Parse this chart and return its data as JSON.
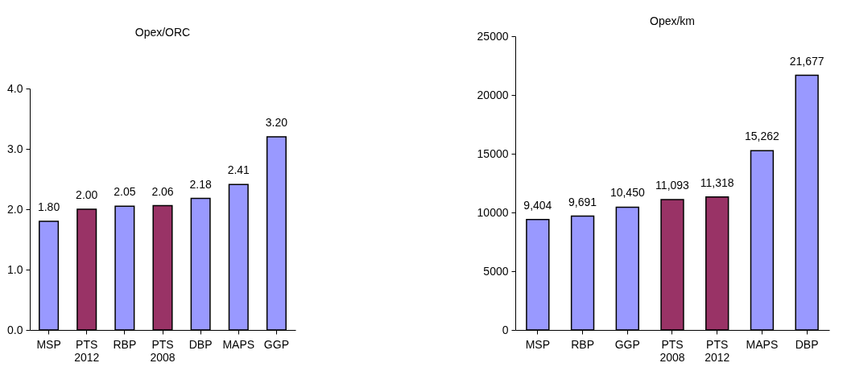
{
  "chart_data": [
    {
      "type": "bar",
      "title": "Opex/ORC",
      "categories": [
        "MSP",
        "PTS 2012",
        "RBP",
        "PTS 2008",
        "DBP",
        "MAPS",
        "GGP"
      ],
      "values": [
        1.8,
        2.0,
        2.05,
        2.06,
        2.18,
        2.41,
        3.2
      ],
      "colors": [
        "#9999ff",
        "#993366",
        "#9999ff",
        "#993366",
        "#9999ff",
        "#9999ff",
        "#9999ff"
      ],
      "value_labels": [
        "1.80",
        "2.00",
        "2.05",
        "2.06",
        "2.18",
        "2.41",
        "3.20"
      ],
      "ylim": [
        0,
        4
      ],
      "yticks": [
        {
          "value": 0,
          "label": "0.0"
        },
        {
          "value": 1,
          "label": "1.0"
        },
        {
          "value": 2,
          "label": "2.0"
        },
        {
          "value": 3,
          "label": "3.0"
        },
        {
          "value": 4,
          "label": "4.0"
        }
      ],
      "grid": false,
      "legend": false
    },
    {
      "type": "bar",
      "title": "Opex/km",
      "categories": [
        "MSP",
        "RBP",
        "GGP",
        "PTS 2008",
        "PTS 2012",
        "MAPS",
        "DBP"
      ],
      "values": [
        9404,
        9691,
        10450,
        11093,
        11318,
        15262,
        21677
      ],
      "colors": [
        "#9999ff",
        "#9999ff",
        "#9999ff",
        "#993366",
        "#993366",
        "#9999ff",
        "#9999ff"
      ],
      "value_labels": [
        "9,404",
        "9,691",
        "10,450",
        "11,093",
        "11,318",
        "15,262",
        "21,677"
      ],
      "ylim": [
        0,
        25000
      ],
      "yticks": [
        0,
        5000,
        10000,
        15000,
        20000,
        25000
      ],
      "grid": false,
      "legend": false
    }
  ]
}
